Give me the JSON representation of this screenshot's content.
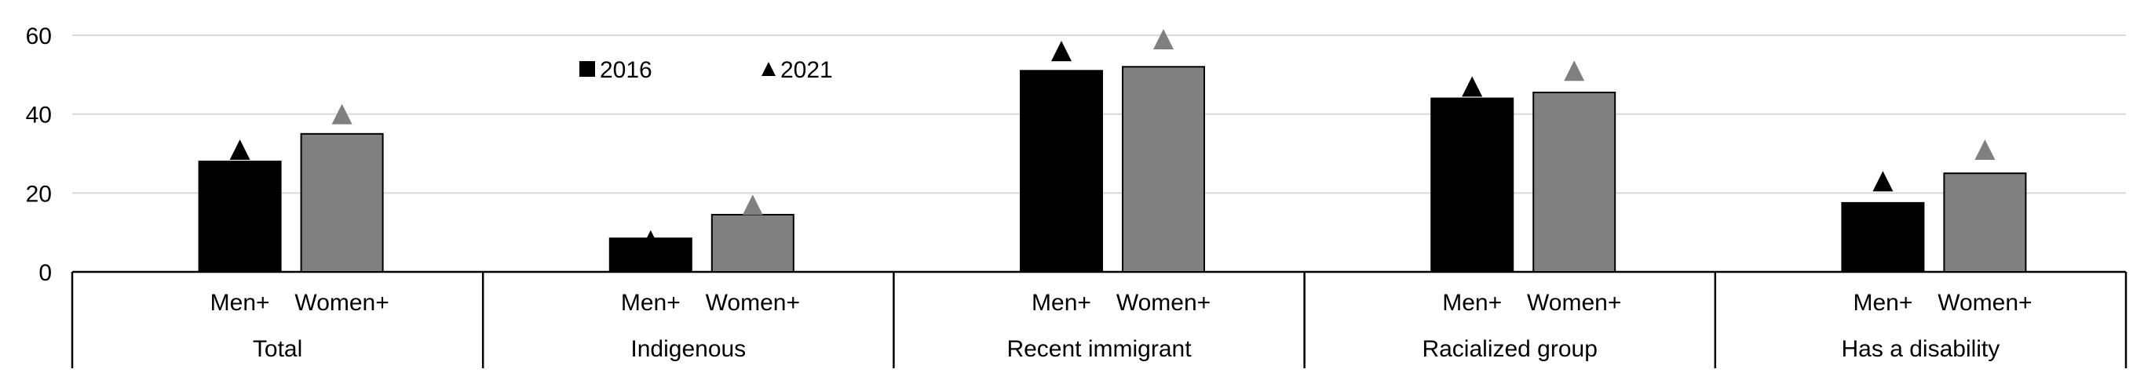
{
  "chart_data": {
    "type": "bar",
    "title": "",
    "xlabel": "",
    "ylabel": "",
    "ylim": [
      0,
      60
    ],
    "yticks": [
      0,
      20,
      40,
      60
    ],
    "grid": true,
    "legend_position": "top-left",
    "groups": [
      "Total",
      "Indigenous",
      "Recent immigrant",
      "Racialized group",
      "Has a disability"
    ],
    "categories": [
      "Men+",
      "Women+"
    ],
    "colors": {
      "men": "#000000",
      "women": "#808080"
    },
    "series": [
      {
        "name": "2016",
        "marker": "bar",
        "values": [
          [
            28,
            35
          ],
          [
            8.5,
            14.5
          ],
          [
            51,
            52
          ],
          [
            44,
            45.5
          ],
          [
            17.5,
            25
          ]
        ]
      },
      {
        "name": "2021",
        "marker": "triangle",
        "values": [
          [
            31,
            40
          ],
          [
            8,
            17
          ],
          [
            56,
            59
          ],
          [
            47,
            51
          ],
          [
            23,
            31
          ]
        ]
      }
    ]
  }
}
